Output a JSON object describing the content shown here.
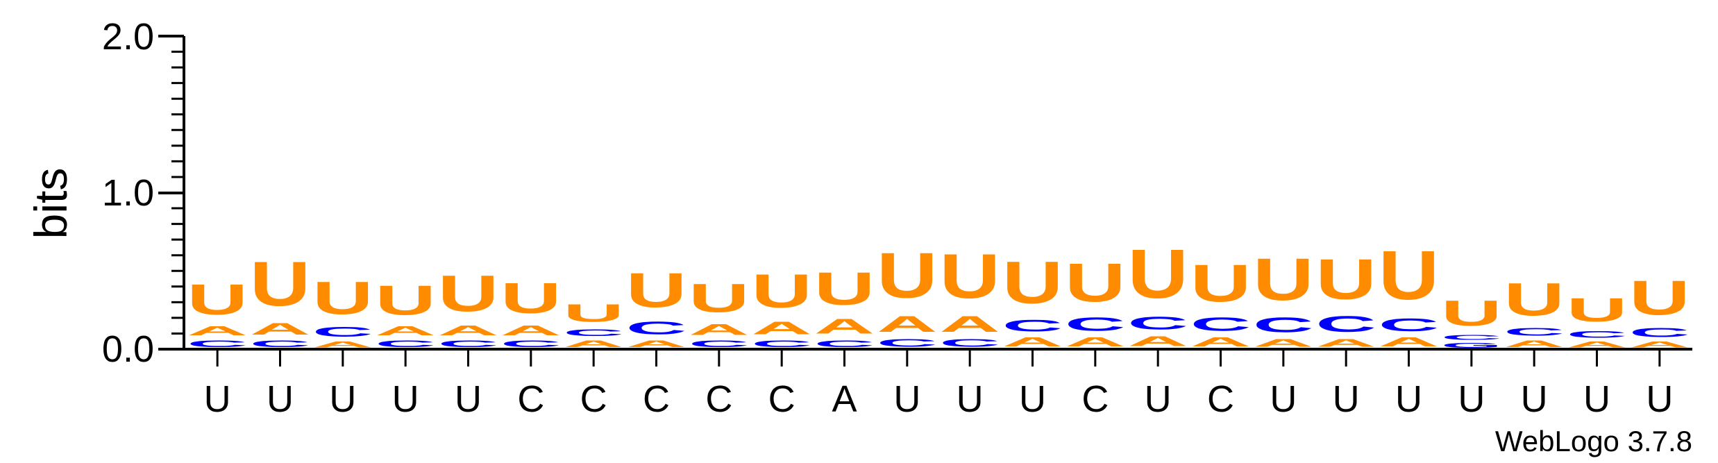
{
  "chart_data": {
    "type": "sequence_logo",
    "ylabel": "bits",
    "ylim": [
      0,
      2.0
    ],
    "yticks": [
      "0.0",
      "1.0",
      "2.0"
    ],
    "credit": "WebLogo 3.7.8",
    "colors": {
      "U": "#ff8c00",
      "A": "#ff8c00",
      "C": "#0000ff",
      "G": "#0000ff"
    },
    "positions": [
      {
        "label": "U",
        "stack": [
          {
            "base": "C",
            "value": 0.07
          },
          {
            "base": "A",
            "value": 0.09
          },
          {
            "base": "U",
            "value": 0.31
          }
        ]
      },
      {
        "label": "U",
        "stack": [
          {
            "base": "C",
            "value": 0.07
          },
          {
            "base": "A",
            "value": 0.12
          },
          {
            "base": "U",
            "value": 0.45
          }
        ]
      },
      {
        "label": "U",
        "stack": [
          {
            "base": "A",
            "value": 0.06
          },
          {
            "base": "C",
            "value": 0.1
          },
          {
            "base": "U",
            "value": 0.33
          }
        ]
      },
      {
        "label": "U",
        "stack": [
          {
            "base": "C",
            "value": 0.07
          },
          {
            "base": "A",
            "value": 0.09
          },
          {
            "base": "U",
            "value": 0.3
          }
        ]
      },
      {
        "label": "U",
        "stack": [
          {
            "base": "C",
            "value": 0.07
          },
          {
            "base": "A",
            "value": 0.1
          },
          {
            "base": "U",
            "value": 0.37
          }
        ]
      },
      {
        "label": "C",
        "stack": [
          {
            "base": "C",
            "value": 0.07
          },
          {
            "base": "A",
            "value": 0.1
          },
          {
            "base": "U",
            "value": 0.31
          }
        ]
      },
      {
        "label": "C",
        "stack": [
          {
            "base": "A",
            "value": 0.07
          },
          {
            "base": "C",
            "value": 0.07
          },
          {
            "base": "U",
            "value": 0.18
          }
        ]
      },
      {
        "label": "C",
        "stack": [
          {
            "base": "A",
            "value": 0.07
          },
          {
            "base": "C",
            "value": 0.13
          },
          {
            "base": "U",
            "value": 0.35
          }
        ]
      },
      {
        "label": "C",
        "stack": [
          {
            "base": "C",
            "value": 0.07
          },
          {
            "base": "A",
            "value": 0.11
          },
          {
            "base": "U",
            "value": 0.29
          }
        ]
      },
      {
        "label": "C",
        "stack": [
          {
            "base": "C",
            "value": 0.07
          },
          {
            "base": "A",
            "value": 0.13
          },
          {
            "base": "U",
            "value": 0.34
          }
        ]
      },
      {
        "label": "A",
        "stack": [
          {
            "base": "C",
            "value": 0.07
          },
          {
            "base": "A",
            "value": 0.15
          },
          {
            "base": "U",
            "value": 0.33
          }
        ]
      },
      {
        "label": "U",
        "stack": [
          {
            "base": "C",
            "value": 0.08
          },
          {
            "base": "A",
            "value": 0.16
          },
          {
            "base": "U",
            "value": 0.46
          }
        ]
      },
      {
        "label": "U",
        "stack": [
          {
            "base": "C",
            "value": 0.08
          },
          {
            "base": "A",
            "value": 0.16
          },
          {
            "base": "U",
            "value": 0.45
          }
        ]
      },
      {
        "label": "U",
        "stack": [
          {
            "base": "A",
            "value": 0.09
          },
          {
            "base": "C",
            "value": 0.12
          },
          {
            "base": "U",
            "value": 0.43
          }
        ]
      },
      {
        "label": "C",
        "stack": [
          {
            "base": "A",
            "value": 0.09
          },
          {
            "base": "C",
            "value": 0.14
          },
          {
            "base": "U",
            "value": 0.39
          }
        ]
      },
      {
        "label": "U",
        "stack": [
          {
            "base": "A",
            "value": 0.1
          },
          {
            "base": "C",
            "value": 0.13
          },
          {
            "base": "U",
            "value": 0.5
          }
        ]
      },
      {
        "label": "C",
        "stack": [
          {
            "base": "A",
            "value": 0.09
          },
          {
            "base": "C",
            "value": 0.14
          },
          {
            "base": "U",
            "value": 0.38
          }
        ]
      },
      {
        "label": "U",
        "stack": [
          {
            "base": "A",
            "value": 0.08
          },
          {
            "base": "C",
            "value": 0.15
          },
          {
            "base": "U",
            "value": 0.43
          }
        ]
      },
      {
        "label": "U",
        "stack": [
          {
            "base": "A",
            "value": 0.08
          },
          {
            "base": "C",
            "value": 0.16
          },
          {
            "base": "U",
            "value": 0.41
          }
        ]
      },
      {
        "label": "U",
        "stack": [
          {
            "base": "A",
            "value": 0.09
          },
          {
            "base": "C",
            "value": 0.13
          },
          {
            "base": "U",
            "value": 0.5
          }
        ]
      },
      {
        "label": "U",
        "stack": [
          {
            "base": "G",
            "value": 0.05
          },
          {
            "base": "C",
            "value": 0.05
          },
          {
            "base": "U",
            "value": 0.26
          }
        ]
      },
      {
        "label": "U",
        "stack": [
          {
            "base": "A",
            "value": 0.07
          },
          {
            "base": "C",
            "value": 0.08
          },
          {
            "base": "U",
            "value": 0.33
          }
        ]
      },
      {
        "label": "U",
        "stack": [
          {
            "base": "A",
            "value": 0.06
          },
          {
            "base": "C",
            "value": 0.07
          },
          {
            "base": "U",
            "value": 0.24
          }
        ]
      },
      {
        "label": "U",
        "stack": [
          {
            "base": "A",
            "value": 0.06
          },
          {
            "base": "C",
            "value": 0.09
          },
          {
            "base": "U",
            "value": 0.35
          }
        ]
      }
    ]
  }
}
